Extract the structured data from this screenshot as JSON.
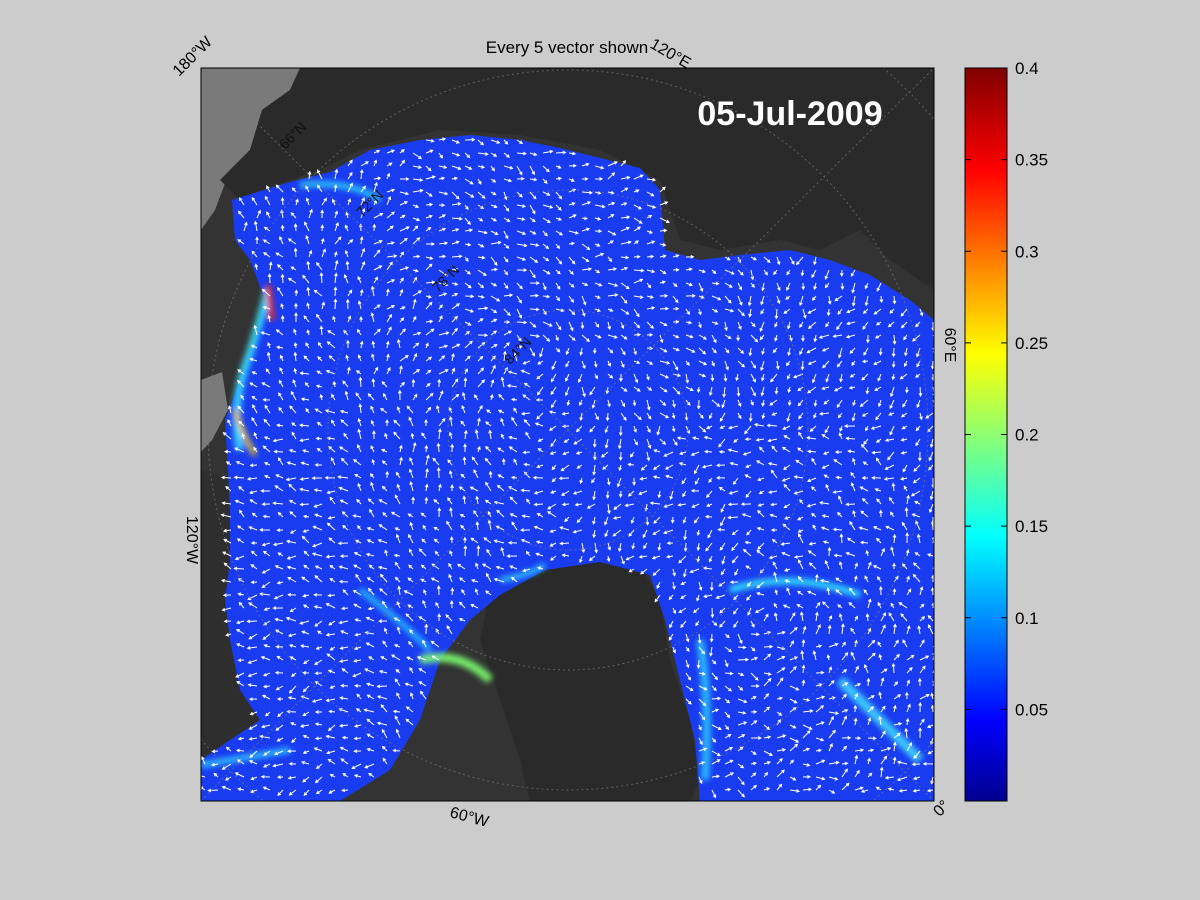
{
  "figure": {
    "title": "Every 5 vector shown",
    "date_stamp": "05-Jul-2009",
    "background_color": "#cccccc",
    "map_background_color": "#333333",
    "land_color": "#2d2d2d",
    "grey_land_color": "#7a7a7a",
    "ocean_color": "#1a3cf0",
    "vector_color": "#ffffff"
  },
  "map": {
    "projection": "polar stereographic (north)",
    "edge_labels": [
      {
        "id": "lon-180w",
        "text": "180°W"
      },
      {
        "id": "lon-120e",
        "text": "120°E"
      },
      {
        "id": "lon-60e",
        "text": "60°E"
      },
      {
        "id": "lon-120w",
        "text": "120°W"
      },
      {
        "id": "lon-60w",
        "text": "60°W"
      },
      {
        "id": "lon-0",
        "text": "0°"
      }
    ],
    "interior_labels": [
      {
        "id": "lat-66n",
        "text": "66°N"
      },
      {
        "id": "lat-72n",
        "text": "72°N"
      },
      {
        "id": "lat-78n",
        "text": "78°N"
      },
      {
        "id": "lat-84n",
        "text": "84°N"
      }
    ]
  },
  "colorbar": {
    "min": 0,
    "max": 0.4,
    "colormap": "jet",
    "ticks": [
      {
        "value": 0.05,
        "label": "0.05"
      },
      {
        "value": 0.1,
        "label": "0.1"
      },
      {
        "value": 0.15,
        "label": "0.15"
      },
      {
        "value": 0.2,
        "label": "0.2"
      },
      {
        "value": 0.25,
        "label": "0.25"
      },
      {
        "value": 0.3,
        "label": "0.3"
      },
      {
        "value": 0.35,
        "label": "0.35"
      },
      {
        "value": 0.4,
        "label": "0.4"
      }
    ]
  }
}
